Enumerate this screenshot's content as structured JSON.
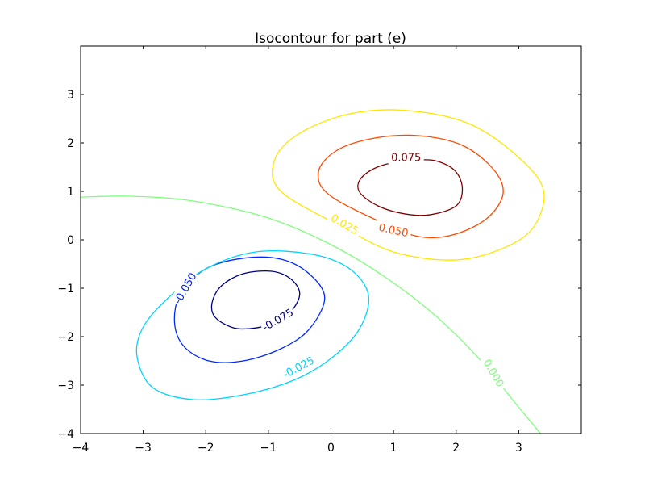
{
  "chart_data": {
    "type": "contour",
    "title": "Isocontour for part (e)",
    "xlabel": "",
    "ylabel": "",
    "xlim": [
      -4,
      4
    ],
    "ylim": [
      -4,
      4
    ],
    "xticks": [
      {
        "value": -4,
        "label": "−4"
      },
      {
        "value": -3,
        "label": "−3"
      },
      {
        "value": -2,
        "label": "−2"
      },
      {
        "value": -1,
        "label": "−1"
      },
      {
        "value": 0,
        "label": "0"
      },
      {
        "value": 1,
        "label": "1"
      },
      {
        "value": 2,
        "label": "2"
      },
      {
        "value": 3,
        "label": "3"
      }
    ],
    "yticks": [
      {
        "value": -4,
        "label": "−4"
      },
      {
        "value": -3,
        "label": "−3"
      },
      {
        "value": -2,
        "label": "−2"
      },
      {
        "value": -1,
        "label": "−1"
      },
      {
        "value": 0,
        "label": "0"
      },
      {
        "value": 1,
        "label": "1"
      },
      {
        "value": 2,
        "label": "2"
      },
      {
        "value": 3,
        "label": "3"
      }
    ],
    "grid": false,
    "colormap": "jet",
    "levels": [
      {
        "level": -0.075,
        "label": "-0.075",
        "color": "#00007f",
        "curves": [
          [
            [
              -0.5,
              -1.1
            ],
            [
              -0.65,
              -0.8
            ],
            [
              -0.95,
              -0.65
            ],
            [
              -1.4,
              -0.7
            ],
            [
              -1.75,
              -0.95
            ],
            [
              -1.9,
              -1.3
            ],
            [
              -1.85,
              -1.6
            ],
            [
              -1.55,
              -1.82
            ],
            [
              -1.2,
              -1.82
            ],
            [
              -0.9,
              -1.7
            ],
            [
              -0.62,
              -1.45
            ],
            [
              -0.5,
              -1.1
            ]
          ]
        ],
        "label_pos": [
          -0.85,
          -1.65
        ],
        "label_angle": -30
      },
      {
        "level": -0.05,
        "label": "-0.050",
        "color": "#0028ff",
        "curves": [
          [
            [
              -0.1,
              -1.2
            ],
            [
              -0.35,
              -0.7
            ],
            [
              -0.8,
              -0.4
            ],
            [
              -1.4,
              -0.38
            ],
            [
              -2.0,
              -0.6
            ],
            [
              -2.4,
              -1.1
            ],
            [
              -2.5,
              -1.7
            ],
            [
              -2.35,
              -2.2
            ],
            [
              -1.95,
              -2.5
            ],
            [
              -1.4,
              -2.5
            ],
            [
              -0.8,
              -2.25
            ],
            [
              -0.35,
              -1.85
            ],
            [
              -0.1,
              -1.2
            ]
          ]
        ],
        "label_pos": [
          -2.33,
          -1.0
        ],
        "label_angle": -60
      },
      {
        "level": -0.025,
        "label": "-0.025",
        "color": "#00d4ff",
        "curves": [
          [
            [
              0.6,
              -1.15
            ],
            [
              0.3,
              -0.6
            ],
            [
              -0.3,
              -0.3
            ],
            [
              -1.2,
              -0.25
            ],
            [
              -2.0,
              -0.6
            ],
            [
              -2.6,
              -1.2
            ],
            [
              -3.0,
              -1.8
            ],
            [
              -3.1,
              -2.4
            ],
            [
              -2.85,
              -3.05
            ],
            [
              -2.2,
              -3.3
            ],
            [
              -1.4,
              -3.2
            ],
            [
              -0.6,
              -2.9
            ],
            [
              0.0,
              -2.45
            ],
            [
              0.45,
              -1.85
            ],
            [
              0.6,
              -1.15
            ]
          ]
        ],
        "label_pos": [
          -0.52,
          -2.63
        ],
        "label_angle": -28
      },
      {
        "level": 0.0,
        "label": "0.000",
        "color": "#7dff7a",
        "curves": [
          [
            [
              -4.0,
              0.88
            ],
            [
              -3.2,
              0.9
            ],
            [
              -2.2,
              0.8
            ],
            [
              -1.0,
              0.45
            ],
            [
              0.0,
              -0.1
            ],
            [
              0.9,
              -0.8
            ],
            [
              1.7,
              -1.6
            ],
            [
              2.4,
              -2.5
            ],
            [
              2.9,
              -3.3
            ],
            [
              3.35,
              -4.0
            ]
          ]
        ],
        "label_pos": [
          2.6,
          -2.75
        ],
        "label_angle": 60
      },
      {
        "level": 0.025,
        "label": "0.025",
        "color": "#ffe600",
        "curves": [
          [
            [
              0.2,
              0.25
            ],
            [
              -0.8,
              1.0
            ],
            [
              -0.9,
              1.65
            ],
            [
              -0.5,
              2.2
            ],
            [
              0.3,
              2.6
            ],
            [
              1.2,
              2.67
            ],
            [
              2.2,
              2.4
            ],
            [
              3.0,
              1.7
            ],
            [
              3.4,
              1.0
            ],
            [
              3.2,
              0.2
            ],
            [
              2.6,
              -0.25
            ],
            [
              1.9,
              -0.42
            ],
            [
              1.0,
              -0.25
            ],
            [
              0.2,
              0.25
            ]
          ]
        ],
        "label_pos": [
          0.22,
          0.32
        ],
        "label_angle": 30
      },
      {
        "level": 0.05,
        "label": "0.050",
        "color": "#ff4800",
        "curves": [
          [
            [
              1.0,
              0.25
            ],
            [
              0.0,
              0.9
            ],
            [
              -0.2,
              1.4
            ],
            [
              0.1,
              1.85
            ],
            [
              0.7,
              2.1
            ],
            [
              1.4,
              2.15
            ],
            [
              2.1,
              1.95
            ],
            [
              2.6,
              1.45
            ],
            [
              2.75,
              0.95
            ],
            [
              2.5,
              0.45
            ],
            [
              2.0,
              0.12
            ],
            [
              1.5,
              0.05
            ],
            [
              1.0,
              0.25
            ]
          ]
        ],
        "label_pos": [
          1.0,
          0.2
        ],
        "label_angle": 12
      },
      {
        "level": 0.075,
        "label": "0.075",
        "color": "#7f0000",
        "curves": [
          [
            [
              1.45,
              1.65
            ],
            [
              0.85,
              1.55
            ],
            [
              0.5,
              1.3
            ],
            [
              0.45,
              1.0
            ],
            [
              0.75,
              0.7
            ],
            [
              1.2,
              0.53
            ],
            [
              1.6,
              0.52
            ],
            [
              2.0,
              0.7
            ],
            [
              2.1,
              1.05
            ],
            [
              2.0,
              1.4
            ],
            [
              1.75,
              1.6
            ],
            [
              1.45,
              1.65
            ]
          ]
        ],
        "label_pos": [
          1.2,
          1.7
        ],
        "label_angle": 0
      }
    ]
  }
}
